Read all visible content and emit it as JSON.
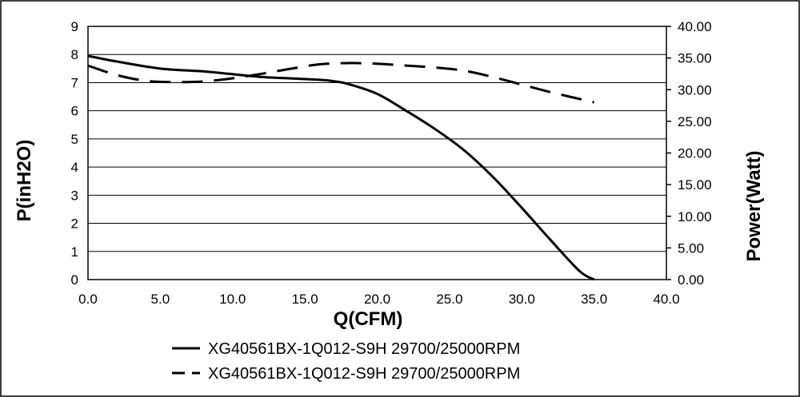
{
  "chart_data": {
    "type": "line",
    "title": "",
    "xlabel": "Q(CFM)",
    "ylabel_left": "P(inH2O)",
    "ylabel_right": "Power(Watt)",
    "xlim": [
      0,
      40
    ],
    "ylim_left": [
      0,
      9
    ],
    "ylim_right": [
      0,
      40
    ],
    "x_ticks": [
      "0.0",
      "5.0",
      "10.0",
      "15.0",
      "20.0",
      "25.0",
      "30.0",
      "35.0",
      "40.0"
    ],
    "y_left_ticks": [
      "0",
      "1",
      "2",
      "3",
      "4",
      "5",
      "6",
      "7",
      "8",
      "9"
    ],
    "y_right_ticks": [
      "0.00",
      "5.00",
      "10.00",
      "15.00",
      "20.00",
      "25.00",
      "30.00",
      "35.00",
      "40.00"
    ],
    "grid": "horizontal",
    "legend_position": "bottom",
    "series": [
      {
        "name": "XG40561BX-1Q012-S9H 29700/25000RPM",
        "style": "solid",
        "axis": "left",
        "x": [
          0,
          2,
          5,
          8,
          10,
          12,
          14,
          16,
          17,
          18,
          20,
          22,
          24,
          26,
          28,
          30,
          32,
          34,
          35
        ],
        "y": [
          7.95,
          7.75,
          7.5,
          7.4,
          7.3,
          7.2,
          7.15,
          7.1,
          7.05,
          6.95,
          6.6,
          6.0,
          5.35,
          4.6,
          3.65,
          2.55,
          1.4,
          0.3,
          0.0
        ]
      },
      {
        "name": "XG40561BX-1Q012-S9H 29700/25000RPM",
        "style": "dashed",
        "axis": "right",
        "x": [
          0,
          2,
          4,
          6,
          8,
          10,
          12,
          14,
          16,
          18,
          20,
          22,
          24,
          26,
          28,
          30,
          32,
          35
        ],
        "y": [
          33.8,
          32.3,
          31.4,
          31.2,
          31.3,
          31.8,
          32.5,
          33.3,
          34.0,
          34.2,
          34.1,
          33.8,
          33.5,
          33.0,
          32.0,
          30.8,
          29.6,
          28.0
        ]
      }
    ]
  }
}
